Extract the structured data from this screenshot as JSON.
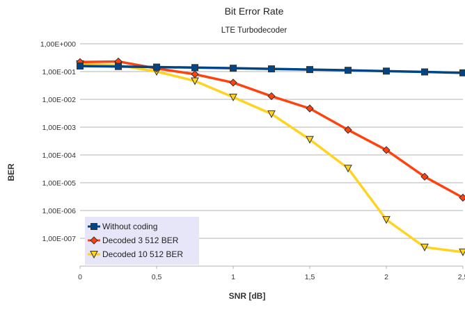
{
  "chart_data": {
    "type": "line",
    "title": "Bit Error Rate",
    "subtitle": "LTE Turbodecoder",
    "xlabel": "SNR [dB]",
    "ylabel": "BER",
    "xlim": [
      0,
      2.5
    ],
    "ylim": [
      1e-08,
      1
    ],
    "yscale": "log",
    "grid": "horizontal",
    "legend_position": "bottom-left",
    "x_ticks": [
      {
        "value": 0,
        "label": "0"
      },
      {
        "value": 0.5,
        "label": "0,5"
      },
      {
        "value": 1,
        "label": "1"
      },
      {
        "value": 1.5,
        "label": "1,5"
      },
      {
        "value": 2,
        "label": "2"
      },
      {
        "value": 2.5,
        "label": "2,5"
      }
    ],
    "y_ticks": [
      {
        "value": 1,
        "label": "1,00E+000"
      },
      {
        "value": 0.1,
        "label": "1,00E-001"
      },
      {
        "value": 0.01,
        "label": "1,00E-002"
      },
      {
        "value": 0.001,
        "label": "1,00E-003"
      },
      {
        "value": 0.0001,
        "label": "1,00E-004"
      },
      {
        "value": 1e-05,
        "label": "1,00E-005"
      },
      {
        "value": 1e-06,
        "label": "1,00E-006"
      },
      {
        "value": 1e-07,
        "label": "1,00E-007"
      }
    ],
    "x": [
      0,
      0.25,
      0.5,
      0.75,
      1,
      1.25,
      1.5,
      1.75,
      2,
      2.25,
      2.5
    ],
    "series": [
      {
        "name": "Without coding",
        "color": "#004586",
        "marker": "square",
        "values": [
          0.158,
          0.152,
          0.145,
          0.139,
          0.132,
          0.125,
          0.118,
          0.111,
          0.104,
          0.097,
          0.09
        ]
      },
      {
        "name": "Decoded 3 512 BER",
        "color": "#ff420e",
        "marker": "diamond",
        "values": [
          0.22,
          0.23,
          0.13,
          0.08,
          0.04,
          0.013,
          0.0047,
          0.0008,
          0.00015,
          1.65e-05,
          2.9e-06
        ]
      },
      {
        "name": "Decoded 10 512 BER",
        "color": "#ffd320",
        "marker": "triangle-down",
        "values": [
          0.19,
          0.17,
          0.1,
          0.046,
          0.012,
          0.003,
          0.00036,
          3.3e-05,
          4.7e-07,
          4.8e-08,
          3.2e-08
        ]
      }
    ]
  },
  "colors": {
    "plot_background": "#ffffff",
    "grid": "#b3b3b3",
    "legend_background": "#e6e6f8",
    "marker_stroke": "#333333"
  }
}
